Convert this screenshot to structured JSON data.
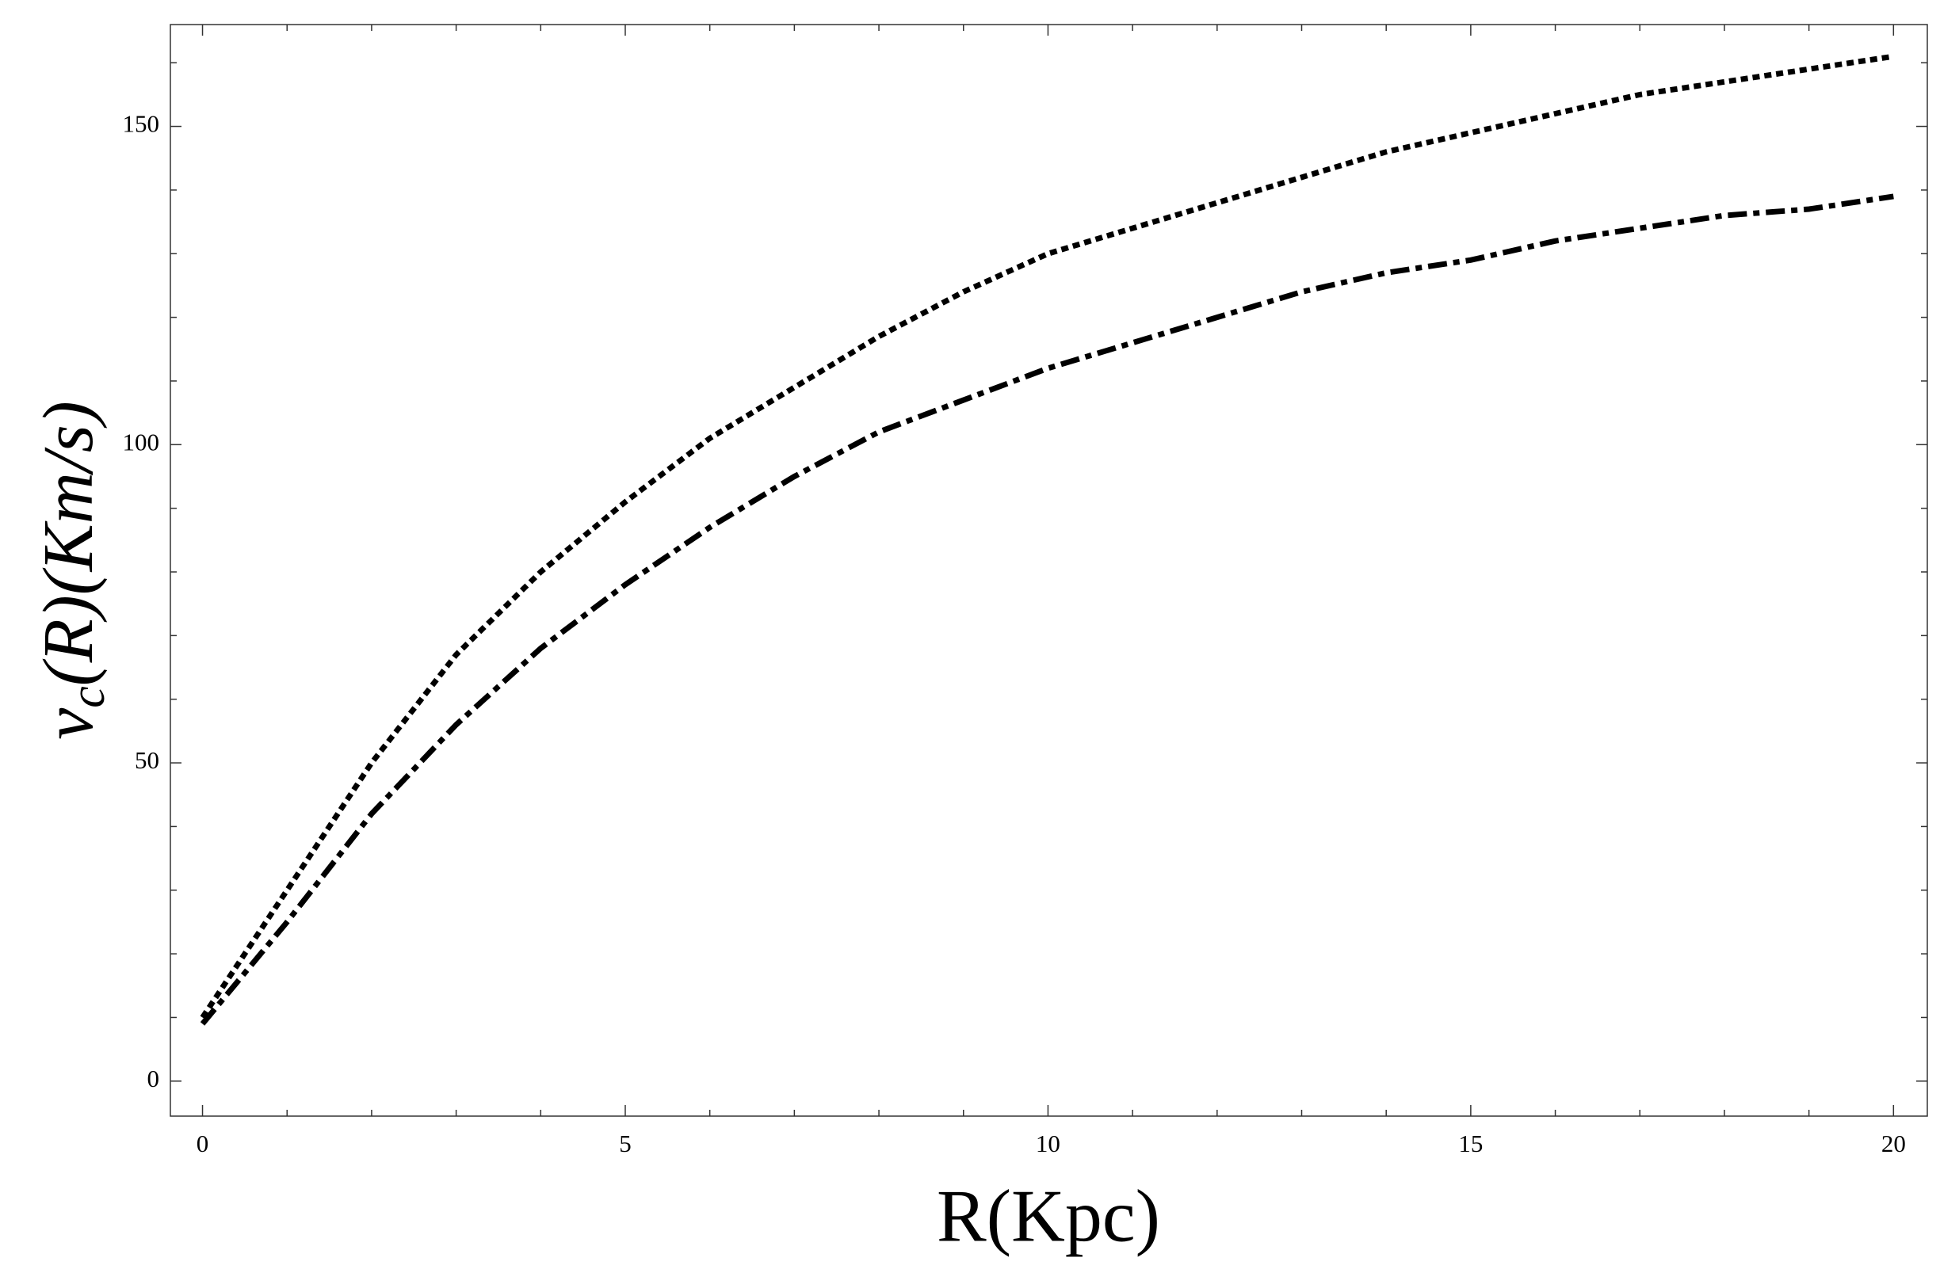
{
  "chart_data": {
    "type": "line",
    "xlabel": "R(Kpc)",
    "ylabel": [
      "v",
      "c",
      "(R)(Km/s)"
    ],
    "x": [
      0,
      1,
      2,
      3,
      4,
      5,
      6,
      7,
      8,
      9,
      10,
      11,
      12,
      13,
      14,
      15,
      16,
      17,
      18,
      19,
      20
    ],
    "series": [
      {
        "color": "#000000",
        "dash": "dotted",
        "values": [
          10,
          30,
          50,
          67,
          80,
          91,
          101,
          109,
          117,
          124,
          130,
          134,
          138,
          142,
          146,
          149,
          152,
          155,
          157,
          159,
          161
        ]
      },
      {
        "color": "#000000",
        "dash": "dashdot",
        "values": [
          9,
          25,
          42,
          56,
          68,
          78,
          87,
          95,
          102,
          107,
          112,
          116,
          120,
          124,
          127,
          129,
          132,
          134,
          136,
          137,
          139
        ]
      }
    ],
    "xlim": [
      -0.38,
      20.4
    ],
    "ylim": [
      -5.5,
      166
    ],
    "xticks": [
      0,
      5,
      10,
      15,
      20
    ],
    "yticks": [
      0,
      50,
      100,
      150
    ],
    "xminorticks": [
      1,
      2,
      3,
      4,
      6,
      7,
      8,
      9,
      11,
      12,
      13,
      14,
      16,
      17,
      18,
      19
    ],
    "yminorticks": [
      10,
      20,
      30,
      40,
      60,
      70,
      80,
      90,
      110,
      120,
      130,
      140,
      160
    ],
    "grid": false
  }
}
